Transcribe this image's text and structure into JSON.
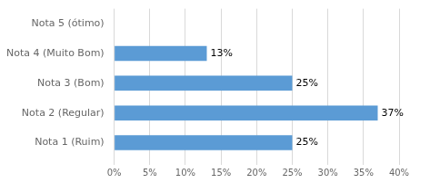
{
  "chart_data": {
    "type": "bar",
    "orientation": "horizontal",
    "categories": [
      "Nota 5 (ótimo)",
      "Nota 4 (Muito Bom)",
      "Nota 3 (Bom)",
      "Nota 2 (Regular)",
      "Nota 1 (Ruim)"
    ],
    "values": [
      0,
      13,
      25,
      37,
      25
    ],
    "value_labels": [
      null,
      "13%",
      "25%",
      "37%",
      "25%"
    ],
    "data_labels": true,
    "color": "#5B9BD5",
    "xlim": [
      0,
      40
    ],
    "xticks": [
      {
        "value": 0,
        "label": "0%"
      },
      {
        "value": 5,
        "label": "5%"
      },
      {
        "value": 10,
        "label": "10%"
      },
      {
        "value": 15,
        "label": "15%"
      },
      {
        "value": 20,
        "label": "20%"
      },
      {
        "value": 25,
        "label": "25%"
      },
      {
        "value": 30,
        "label": "30%"
      },
      {
        "value": 35,
        "label": "35%"
      },
      {
        "value": 40,
        "label": "40%"
      }
    ],
    "grid": true
  }
}
